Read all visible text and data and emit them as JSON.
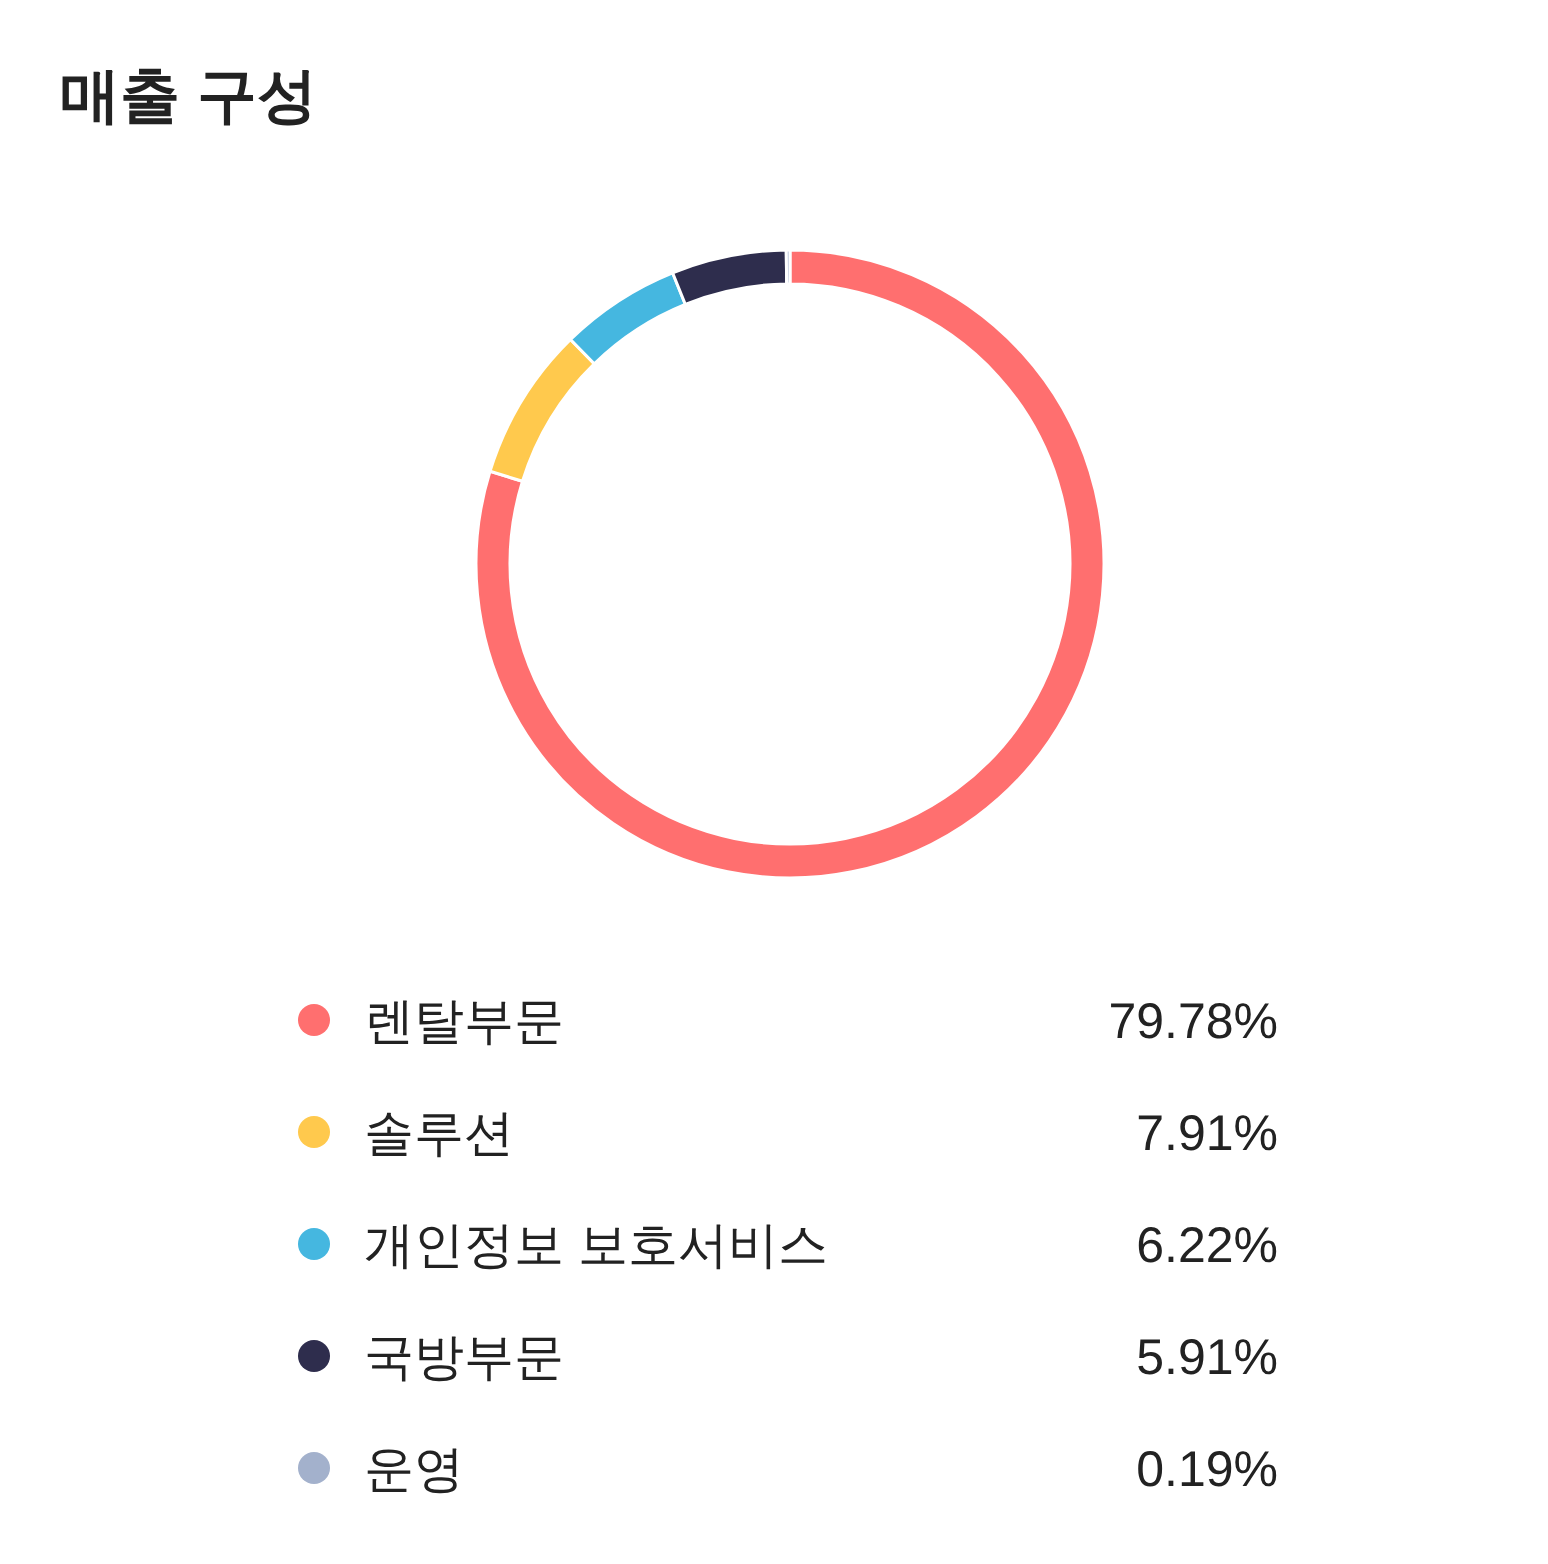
{
  "chart_data": {
    "type": "donut",
    "title": "매출 구성",
    "categories": [
      "렌탈부문",
      "솔루션",
      "개인정보 보호서비스",
      "국방부문",
      "운영"
    ],
    "values": [
      79.78,
      7.91,
      6.22,
      5.91,
      0.19
    ],
    "value_labels": [
      "79.78%",
      "7.91%",
      "6.22%",
      "5.91%",
      "0.19%"
    ],
    "colors": [
      "#ff6f6f",
      "#ffc94d",
      "#45b7e0",
      "#2e2d4d",
      "#a3b1cc"
    ],
    "legend": "bottom"
  }
}
